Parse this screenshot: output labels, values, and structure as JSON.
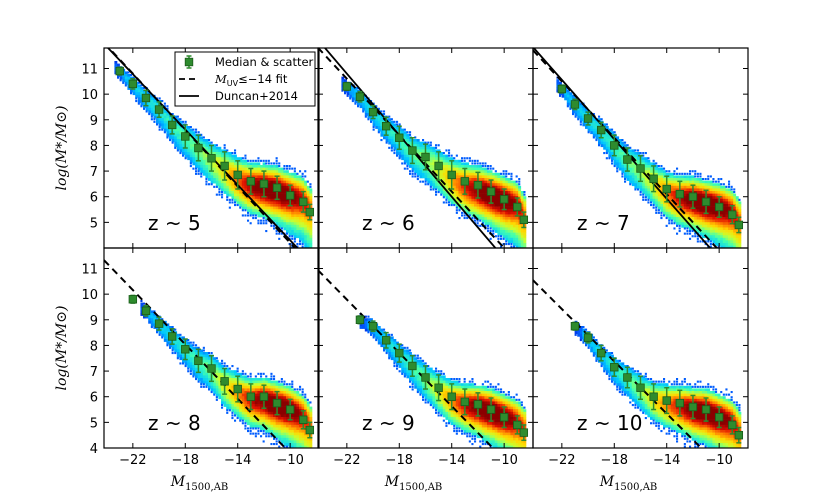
{
  "chart_data": {
    "type": "scatter",
    "description_free": true,
    "layout": "2x3 grid of panels with shared axes",
    "x_axis": {
      "label_main": "M",
      "label_sub": "1500,AB",
      "ticks": [
        -22,
        -18,
        -14,
        -10
      ],
      "tick_labels": [
        "−22",
        "−18",
        "−14",
        "−10"
      ],
      "range": [
        -24.2,
        -7.8
      ]
    },
    "y_axis": {
      "label_text": "log(M*/M⊙)",
      "ticks": [
        4,
        5,
        6,
        7,
        8,
        9,
        10,
        11
      ],
      "tick_labels": [
        "4",
        "5",
        "6",
        "7",
        "8",
        "9",
        "10",
        "11"
      ],
      "range": [
        4,
        11.8
      ]
    },
    "legend": {
      "placement": "top-right of first panel",
      "entries": [
        {
          "label": "Median & scatter",
          "style": "green-square-errorbar",
          "color": "#2e8b2e"
        },
        {
          "label_prefix": "M",
          "label_sub": "UV",
          "label_suffix": "≤−14 fit",
          "style": "dashed-line",
          "color": "#000000"
        },
        {
          "label": "Duncan+2014",
          "style": "solid-line",
          "color": "#000000"
        }
      ]
    },
    "panels": [
      {
        "name": "z5",
        "label": "z ~ 5",
        "fit_line": {
          "slope": -0.55,
          "intercept": -1.3
        },
        "duncan_line": {
          "slope": -0.54,
          "intercept": -1.1
        },
        "median": {
          "x": [
            -23,
            -22,
            -21,
            -20,
            -19,
            -18,
            -17,
            -16,
            -15,
            -14,
            -13,
            -12,
            -11,
            -10,
            -9,
            -8.5
          ],
          "y": [
            10.9,
            10.4,
            9.85,
            9.4,
            8.8,
            8.35,
            7.9,
            7.5,
            7.2,
            6.85,
            6.6,
            6.5,
            6.35,
            6.05,
            5.8,
            5.4
          ],
          "err": [
            0.15,
            0.2,
            0.3,
            0.3,
            0.35,
            0.45,
            0.5,
            0.5,
            0.55,
            0.55,
            0.5,
            0.5,
            0.45,
            0.4,
            0.4,
            0.3
          ]
        },
        "density": {
          "bright_start": -22.8,
          "bright_end": -8.7,
          "peak_x": -11.5,
          "peak_y": 6.1
        }
      },
      {
        "name": "z6",
        "label": "z ~ 6",
        "fit_line": {
          "slope": -0.55,
          "intercept": -1.5
        },
        "duncan_line": {
          "slope": -0.6,
          "intercept": -2.4
        },
        "median": {
          "x": [
            -22,
            -21,
            -20,
            -19,
            -18,
            -17,
            -16,
            -15,
            -14,
            -13,
            -12,
            -11,
            -10,
            -9,
            -8.5
          ],
          "y": [
            10.3,
            9.9,
            9.3,
            8.75,
            8.3,
            7.8,
            7.55,
            7.2,
            6.85,
            6.6,
            6.45,
            6.2,
            5.9,
            5.6,
            5.1
          ],
          "err": [
            0.15,
            0.2,
            0.25,
            0.35,
            0.45,
            0.5,
            0.5,
            0.55,
            0.55,
            0.5,
            0.5,
            0.45,
            0.4,
            0.35,
            0.3
          ]
        },
        "density": {
          "bright_start": -21.8,
          "bright_end": -8.7,
          "peak_x": -11.0,
          "peak_y": 5.9
        }
      },
      {
        "name": "z7",
        "label": "z ~ 7",
        "fit_line": {
          "slope": -0.55,
          "intercept": -1.6
        },
        "duncan_line": {
          "slope": -0.58,
          "intercept": -2.2
        },
        "median": {
          "x": [
            -22,
            -21,
            -20,
            -19,
            -18,
            -17,
            -16,
            -15,
            -14,
            -13,
            -12,
            -11,
            -10,
            -9,
            -8.5
          ],
          "y": [
            10.2,
            9.6,
            9.05,
            8.6,
            8.0,
            7.45,
            7.1,
            6.7,
            6.3,
            6.1,
            6.0,
            5.8,
            5.6,
            5.3,
            4.9
          ],
          "err": [
            0.15,
            0.2,
            0.25,
            0.3,
            0.4,
            0.45,
            0.5,
            0.5,
            0.5,
            0.5,
            0.45,
            0.45,
            0.4,
            0.35,
            0.3
          ]
        },
        "density": {
          "bright_start": -21.8,
          "bright_end": -8.7,
          "peak_x": -11.0,
          "peak_y": 5.7
        }
      },
      {
        "name": "z8",
        "label": "z ~ 8",
        "fit_line": {
          "slope": -0.53,
          "intercept": -1.5
        },
        "median": {
          "x": [
            -22,
            -21,
            -20,
            -19,
            -18,
            -17,
            -16,
            -15,
            -14,
            -13,
            -12,
            -11,
            -10,
            -9,
            -8.5
          ],
          "y": [
            9.8,
            9.35,
            8.85,
            8.35,
            7.85,
            7.4,
            7.1,
            6.6,
            6.3,
            6.0,
            6.0,
            5.75,
            5.5,
            5.1,
            4.7
          ],
          "err": [
            0.15,
            0.2,
            0.25,
            0.3,
            0.4,
            0.45,
            0.5,
            0.5,
            0.5,
            0.5,
            0.45,
            0.45,
            0.4,
            0.35,
            0.3
          ]
        },
        "density": {
          "bright_start": -20.8,
          "bright_end": -8.7,
          "peak_x": -11.0,
          "peak_y": 5.6
        }
      },
      {
        "name": "z9",
        "label": "z ~ 9",
        "fit_line": {
          "slope": -0.52,
          "intercept": -1.65
        },
        "median": {
          "x": [
            -21,
            -20,
            -19,
            -18,
            -17,
            -16,
            -15,
            -14,
            -13,
            -12,
            -11,
            -10,
            -9,
            -8.5
          ],
          "y": [
            9.0,
            8.75,
            8.2,
            7.7,
            7.2,
            6.75,
            6.35,
            6.0,
            5.8,
            5.7,
            5.5,
            5.2,
            4.9,
            4.6
          ],
          "err": [
            0.15,
            0.2,
            0.3,
            0.35,
            0.4,
            0.45,
            0.5,
            0.5,
            0.5,
            0.45,
            0.45,
            0.4,
            0.35,
            0.3
          ]
        },
        "density": {
          "bright_start": -20.5,
          "bright_end": -8.7,
          "peak_x": -11.0,
          "peak_y": 5.4
        }
      },
      {
        "name": "z10",
        "label": "z ~ 10",
        "fit_line": {
          "slope": -0.51,
          "intercept": -1.8
        },
        "median": {
          "x": [
            -21,
            -20,
            -19,
            -18,
            -17,
            -16,
            -15,
            -14,
            -13,
            -12,
            -11,
            -10,
            -9,
            -8.5
          ],
          "y": [
            8.75,
            8.3,
            7.7,
            7.15,
            6.75,
            6.35,
            6.0,
            5.85,
            5.75,
            5.6,
            5.5,
            5.2,
            4.9,
            4.5
          ],
          "err": [
            0.15,
            0.2,
            0.3,
            0.35,
            0.4,
            0.45,
            0.5,
            0.5,
            0.5,
            0.45,
            0.45,
            0.4,
            0.35,
            0.3
          ]
        },
        "density": {
          "bright_start": -20.5,
          "bright_end": -8.7,
          "peak_x": -11.0,
          "peak_y": 5.3
        }
      }
    ]
  },
  "colors": {
    "median_fill": "#2e8b2e",
    "median_edge": "#1a5c1a",
    "errorbar": "#2e8b2e",
    "colormap": [
      "#0000c8",
      "#0060ff",
      "#00c8ff",
      "#40ffb0",
      "#c8ff30",
      "#ffd800",
      "#ff8000",
      "#e01000",
      "#8a0000"
    ]
  }
}
